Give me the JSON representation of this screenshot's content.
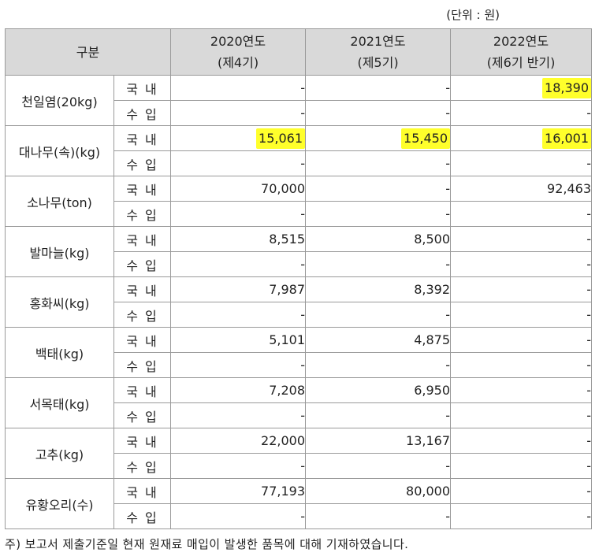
{
  "unit_label": "(단위 : 원)",
  "header": {
    "category": "구분",
    "years": [
      {
        "year": "2020연도",
        "period": "(제4기)"
      },
      {
        "year": "2021연도",
        "period": "(제5기)"
      },
      {
        "year": "2022연도",
        "period": "(제6기 반기)"
      }
    ]
  },
  "rows": [
    {
      "item": "천일염(20kg)",
      "domestic": {
        "label": "국 내",
        "values": [
          "-",
          "-",
          "18,390"
        ],
        "highlight": [
          false,
          false,
          true
        ]
      },
      "import": {
        "label": "수 입",
        "values": [
          "-",
          "-",
          "-"
        ]
      }
    },
    {
      "item": "대나무(속)(kg)",
      "domestic": {
        "label": "국 내",
        "values": [
          "15,061",
          "15,450",
          "16,001"
        ],
        "highlight": [
          true,
          true,
          true
        ]
      },
      "import": {
        "label": "수 입",
        "values": [
          "-",
          "-",
          "-"
        ]
      }
    },
    {
      "item": "소나무(ton)",
      "domestic": {
        "label": "국 내",
        "values": [
          "70,000",
          "-",
          "92,463"
        ],
        "highlight": [
          false,
          false,
          false
        ]
      },
      "import": {
        "label": "수 입",
        "values": [
          "-",
          "-",
          "-"
        ]
      }
    },
    {
      "item": "발마늘(kg)",
      "domestic": {
        "label": "국 내",
        "values": [
          "8,515",
          "8,500",
          "-"
        ],
        "highlight": [
          false,
          false,
          false
        ]
      },
      "import": {
        "label": "수 입",
        "values": [
          "-",
          "-",
          "-"
        ]
      }
    },
    {
      "item": "홍화씨(kg)",
      "domestic": {
        "label": "국 내",
        "values": [
          "7,987",
          "8,392",
          "-"
        ],
        "highlight": [
          false,
          false,
          false
        ]
      },
      "import": {
        "label": "수 입",
        "values": [
          "-",
          "-",
          "-"
        ]
      }
    },
    {
      "item": "백태(kg)",
      "domestic": {
        "label": "국 내",
        "values": [
          "5,101",
          "4,875",
          "-"
        ],
        "highlight": [
          false,
          false,
          false
        ]
      },
      "import": {
        "label": "수 입",
        "values": [
          "-",
          "-",
          "-"
        ]
      }
    },
    {
      "item": "서목태(kg)",
      "domestic": {
        "label": "국 내",
        "values": [
          "7,208",
          "6,950",
          "-"
        ],
        "highlight": [
          false,
          false,
          false
        ]
      },
      "import": {
        "label": "수 입",
        "values": [
          "-",
          "-",
          "-"
        ]
      }
    },
    {
      "item": "고추(kg)",
      "domestic": {
        "label": "국 내",
        "values": [
          "22,000",
          "13,167",
          "-"
        ],
        "highlight": [
          false,
          false,
          false
        ]
      },
      "import": {
        "label": "수 입",
        "values": [
          "-",
          "-",
          "-"
        ]
      }
    },
    {
      "item": "유황오리(수)",
      "domestic": {
        "label": "국 내",
        "values": [
          "77,193",
          "80,000",
          "-"
        ],
        "highlight": [
          false,
          false,
          false
        ]
      },
      "import": {
        "label": "수 입",
        "values": [
          "-",
          "-",
          "-"
        ]
      }
    }
  ],
  "footnote": "주) 보고서 제출기준일 현재 원재료 매입이 발생한 품목에 대해 기재하였습니다.",
  "colors": {
    "highlight": "#ffff2b",
    "header_bg": "#d9d9d9"
  }
}
